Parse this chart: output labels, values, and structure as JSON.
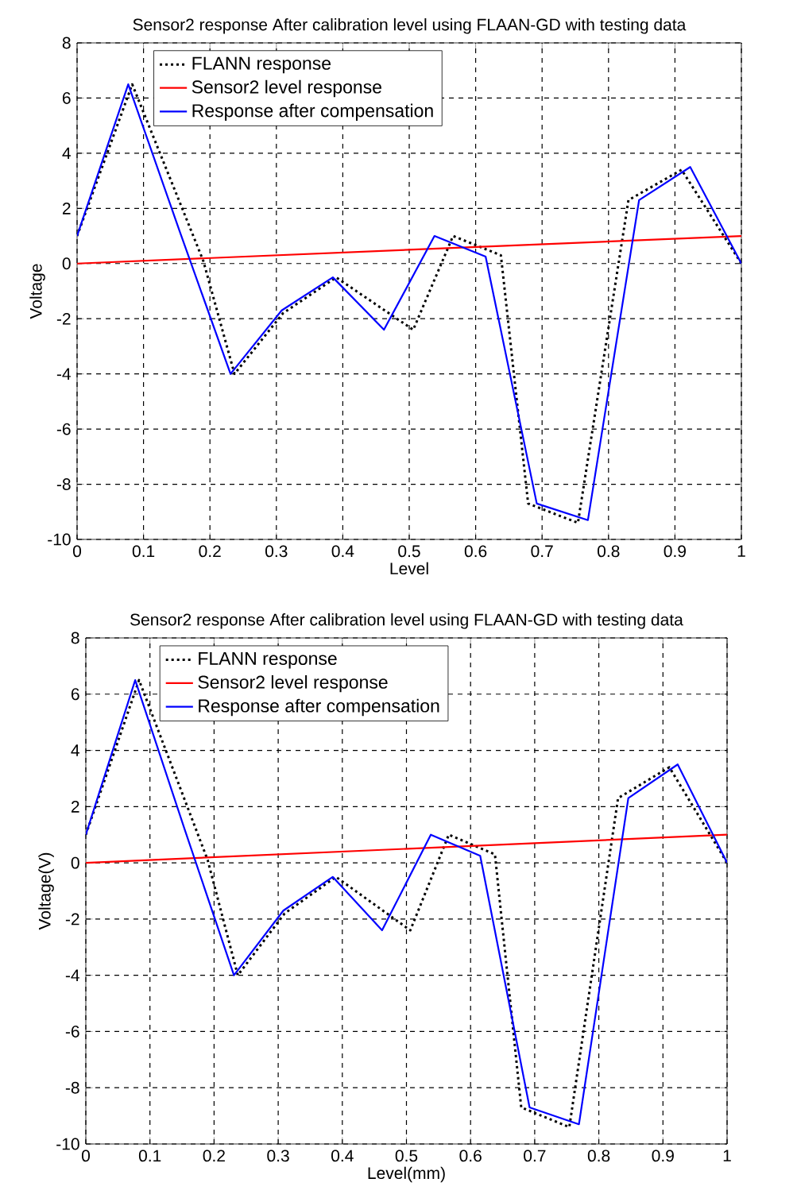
{
  "chart_data": [
    {
      "type": "line",
      "title": "Sensor2 response After calibration level using FLAAN-GD with testing data",
      "xlabel": "Level",
      "ylabel": "Voltage",
      "xlim": [
        0,
        1
      ],
      "ylim": [
        -10,
        8
      ],
      "xticks": [
        0,
        0.1,
        0.2,
        0.3,
        0.4,
        0.5,
        0.6,
        0.7,
        0.8,
        0.9,
        1
      ],
      "yticks": [
        -10,
        -8,
        -6,
        -4,
        -2,
        0,
        2,
        4,
        6,
        8
      ],
      "grid": true,
      "legend": "top left",
      "series": [
        {
          "name": "FLANN response",
          "color": "#000000",
          "line_style": "dotted",
          "x": [
            0,
            0.083,
            0.19,
            0.237,
            0.31,
            0.39,
            0.506,
            0.566,
            0.638,
            0.679,
            0.754,
            0.83,
            0.91,
            1
          ],
          "values": [
            1,
            6.5,
            0.1,
            -4,
            -1.8,
            -0.5,
            -2.4,
            1,
            0.3,
            -8.7,
            -9.4,
            2.3,
            3.4,
            0
          ]
        },
        {
          "name": "Sensor2 level response",
          "color": "#ff0000",
          "line_style": "solid",
          "x": [
            0,
            1
          ],
          "values": [
            0,
            1
          ]
        },
        {
          "name": "Response after compensation",
          "color": "#0000ff",
          "line_style": "solid",
          "x": [
            0,
            0.077,
            0.154,
            0.231,
            0.308,
            0.385,
            0.462,
            0.538,
            0.615,
            0.692,
            0.769,
            0.846,
            0.923,
            1
          ],
          "values": [
            1,
            6.5,
            1.2,
            -4,
            -1.7,
            -0.5,
            -2.4,
            1,
            0.25,
            -8.7,
            -9.3,
            2.3,
            3.5,
            0
          ]
        }
      ]
    },
    {
      "type": "line",
      "title": "Sensor2 response After calibration level using FLAAN-GD with testing data",
      "xlabel": "Level(mm)",
      "ylabel": "Voltage(V)",
      "xlim": [
        0,
        1
      ],
      "ylim": [
        -10,
        8
      ],
      "xticks": [
        0,
        0.1,
        0.2,
        0.3,
        0.4,
        0.5,
        0.6,
        0.7,
        0.8,
        0.9,
        1
      ],
      "yticks": [
        -10,
        -8,
        -6,
        -4,
        -2,
        0,
        2,
        4,
        6,
        8
      ],
      "grid": true,
      "legend": "top left",
      "series": [
        {
          "name": "FLANN response",
          "color": "#000000",
          "line_style": "dotted",
          "x": [
            0,
            0.083,
            0.19,
            0.237,
            0.31,
            0.39,
            0.506,
            0.566,
            0.638,
            0.679,
            0.754,
            0.83,
            0.91,
            1
          ],
          "values": [
            1,
            6.5,
            0.1,
            -4,
            -1.8,
            -0.5,
            -2.4,
            1,
            0.3,
            -8.7,
            -9.4,
            2.3,
            3.4,
            0
          ]
        },
        {
          "name": "Sensor2 level response",
          "color": "#ff0000",
          "line_style": "solid",
          "x": [
            0,
            1
          ],
          "values": [
            0,
            1
          ]
        },
        {
          "name": "Response after compensation",
          "color": "#0000ff",
          "line_style": "solid",
          "x": [
            0,
            0.077,
            0.154,
            0.231,
            0.308,
            0.385,
            0.462,
            0.538,
            0.615,
            0.692,
            0.769,
            0.846,
            0.923,
            1
          ],
          "values": [
            1,
            6.5,
            1.2,
            -4,
            -1.7,
            -0.5,
            -2.4,
            1,
            0.25,
            -8.7,
            -9.3,
            2.3,
            3.5,
            0
          ]
        }
      ]
    }
  ]
}
